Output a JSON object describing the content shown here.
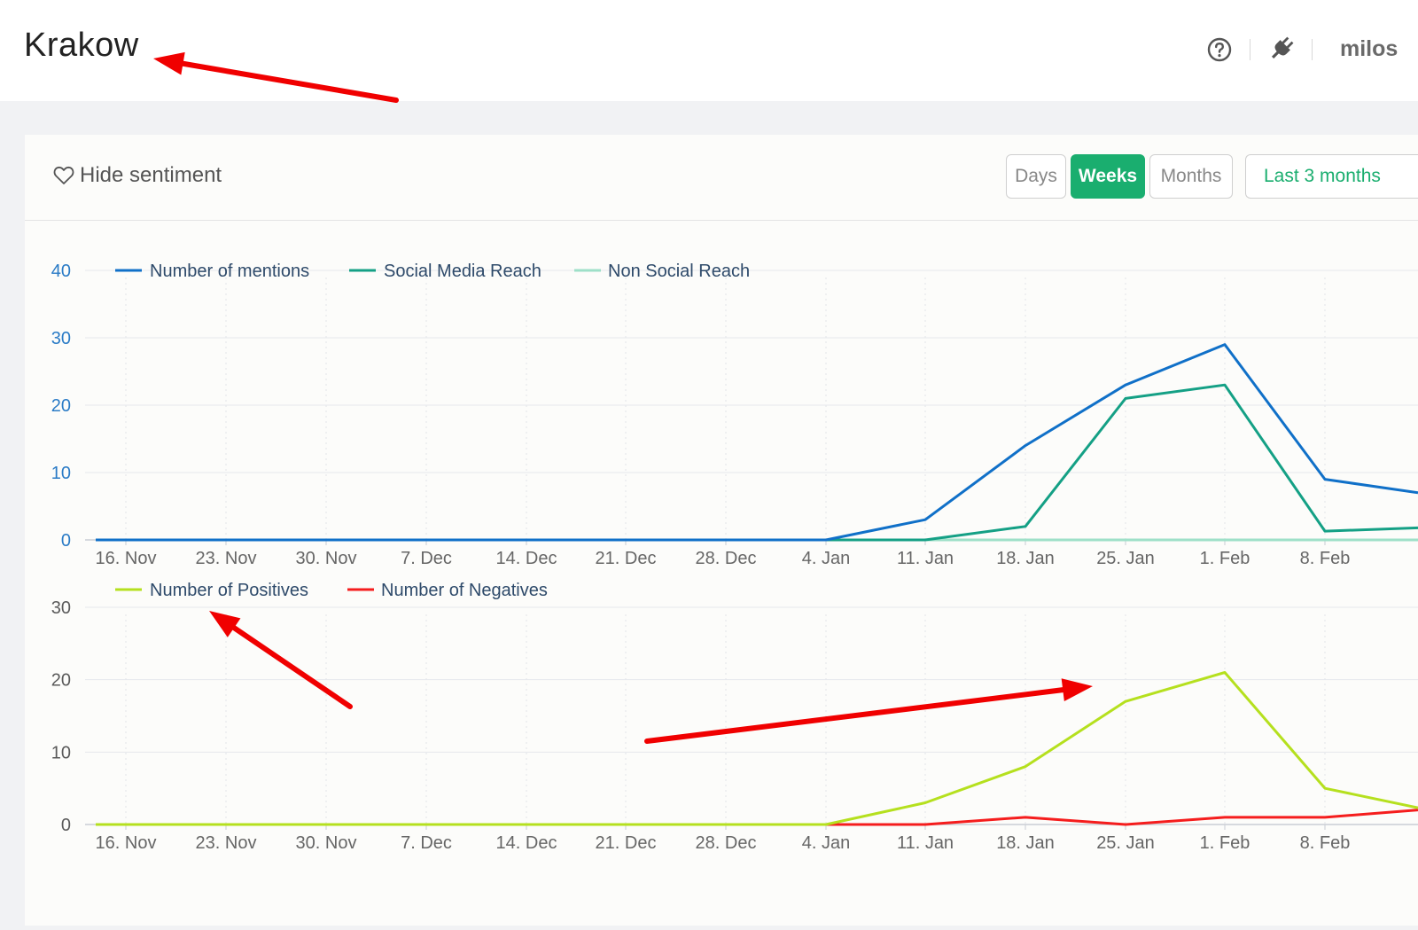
{
  "header": {
    "title": "Krakow",
    "user": "milos"
  },
  "toolbar": {
    "hide_sentiment": "Hide sentiment",
    "granularity": [
      "Days",
      "Weeks",
      "Months"
    ],
    "active_granularity": "Weeks",
    "range": "Last 3 months"
  },
  "colors": {
    "accent": "#1aae6f",
    "annotation_arrow": "#f00000"
  },
  "chart_data": [
    {
      "type": "line",
      "x": [
        "16. Nov",
        "23. Nov",
        "30. Nov",
        "7. Dec",
        "14. Dec",
        "21. Dec",
        "28. Dec",
        "4. Jan",
        "11. Jan",
        "18. Jan",
        "25. Jan",
        "1. Feb",
        "8. Feb"
      ],
      "ylim": [
        0,
        40
      ],
      "yticks": [
        0,
        10,
        20,
        30,
        40
      ],
      "grid": true,
      "legend": "top-left",
      "series": [
        {
          "name": "Number of mentions",
          "color": "#1070c8",
          "values": [
            0,
            0,
            0,
            0,
            0,
            0,
            0,
            0,
            3,
            14,
            23,
            29,
            9
          ],
          "end_value": 7
        },
        {
          "name": "Social Media Reach",
          "color": "#14a085",
          "values": [
            0,
            0,
            0,
            0,
            0,
            0,
            0,
            0,
            0,
            2,
            21,
            23,
            1.3
          ],
          "end_value": 1.8
        },
        {
          "name": "Non Social Reach",
          "color": "#9ee0c8",
          "values": [
            0,
            0,
            0,
            0,
            0,
            0,
            0,
            0,
            0,
            0,
            0,
            0,
            0
          ],
          "end_value": 0
        }
      ]
    },
    {
      "type": "line",
      "x": [
        "16. Nov",
        "23. Nov",
        "30. Nov",
        "7. Dec",
        "14. Dec",
        "21. Dec",
        "28. Dec",
        "4. Jan",
        "11. Jan",
        "18. Jan",
        "25. Jan",
        "1. Feb",
        "8. Feb"
      ],
      "ylim": [
        0,
        30
      ],
      "yticks": [
        0,
        10,
        20,
        30
      ],
      "grid": true,
      "legend": "top-left",
      "series": [
        {
          "name": "Number of Positives",
          "color": "#b5e01e",
          "values": [
            0,
            0,
            0,
            0,
            0,
            0,
            0,
            0,
            3,
            8,
            17,
            21,
            5
          ],
          "end_value": 2.3
        },
        {
          "name": "Number of Negatives",
          "color": "#f51d1d",
          "values": [
            0,
            0,
            0,
            0,
            0,
            0,
            0,
            0,
            0,
            1,
            0,
            1,
            1
          ],
          "end_value": 2
        }
      ]
    }
  ]
}
